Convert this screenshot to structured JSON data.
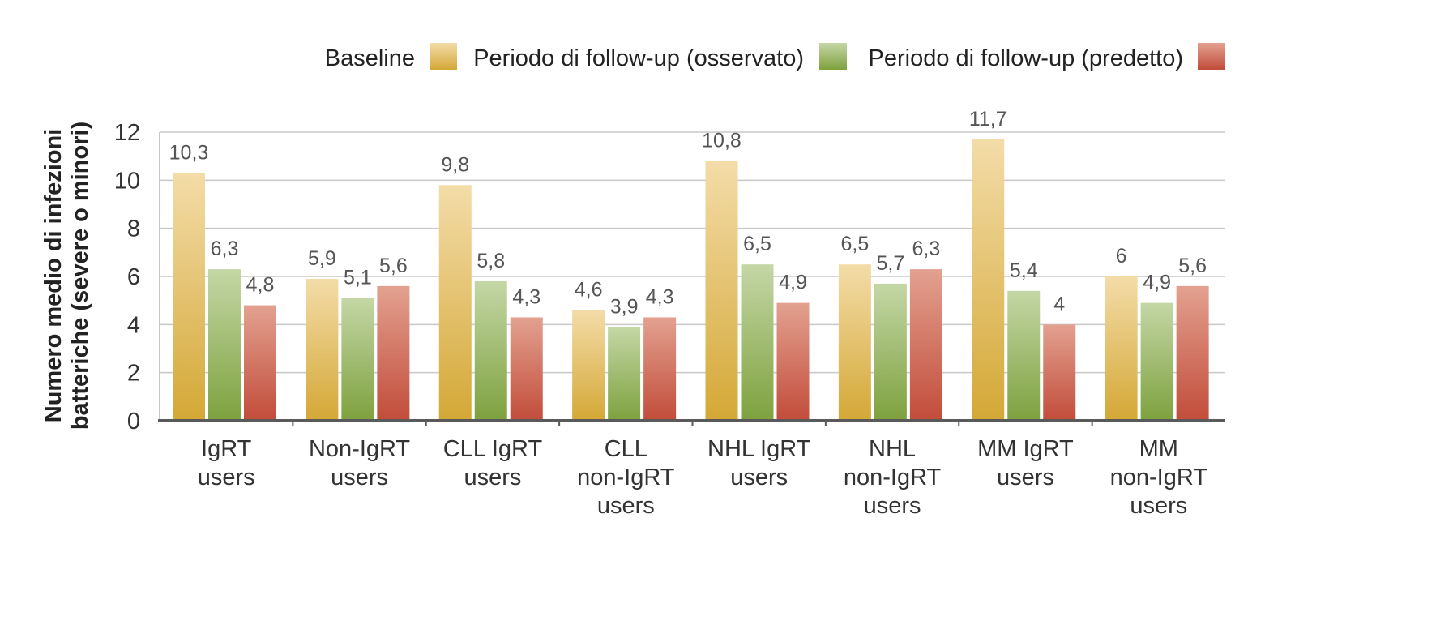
{
  "chart_data": {
    "type": "bar",
    "title": "",
    "xlabel": "",
    "ylabel": [
      "Numero medio di infezioni",
      "batteriche (severe o minori)"
    ],
    "ylim": [
      0,
      12
    ],
    "yticks": [
      0,
      2,
      4,
      6,
      8,
      10,
      12
    ],
    "grid": true,
    "legend_position": "top-right",
    "categories": [
      [
        "IgRT",
        "users"
      ],
      [
        "Non-IgRT",
        "users"
      ],
      [
        "CLL IgRT",
        "users"
      ],
      [
        "CLL",
        "non-IgRT",
        "users"
      ],
      [
        "NHL IgRT",
        "users"
      ],
      [
        "NHL",
        "non-IgRT",
        "users"
      ],
      [
        "MM IgRT",
        "users"
      ],
      [
        "MM",
        "non-IgRT",
        "users"
      ]
    ],
    "series": [
      {
        "name": "Baseline",
        "color_top": "#f3dca8",
        "color_bottom": "#d4a836",
        "values": [
          10.3,
          5.9,
          9.8,
          4.6,
          10.8,
          6.5,
          11.7,
          6
        ],
        "labels": [
          "10,3",
          "5,9",
          "9,8",
          "4,6",
          "10,8",
          "6,5",
          "11,7",
          "6"
        ]
      },
      {
        "name": "Periodo di follow-up (osservato)",
        "color_top": "#c4d7a6",
        "color_bottom": "#7ea13e",
        "values": [
          6.3,
          5.1,
          5.8,
          3.9,
          6.5,
          5.7,
          5.4,
          4.9
        ],
        "labels": [
          "6,3",
          "5,1",
          "5,8",
          "3,9",
          "6,5",
          "5,7",
          "5,4",
          "4,9"
        ]
      },
      {
        "name": "Periodo di follow-up (predetto)",
        "color_top": "#e3a190",
        "color_bottom": "#c24c3a",
        "values": [
          4.8,
          5.6,
          4.3,
          4.3,
          4.9,
          6.3,
          4,
          5.6
        ],
        "labels": [
          "4,8",
          "5,6",
          "4,3",
          "4,3",
          "4,9",
          "6,3",
          "4",
          "5,6"
        ]
      }
    ]
  }
}
